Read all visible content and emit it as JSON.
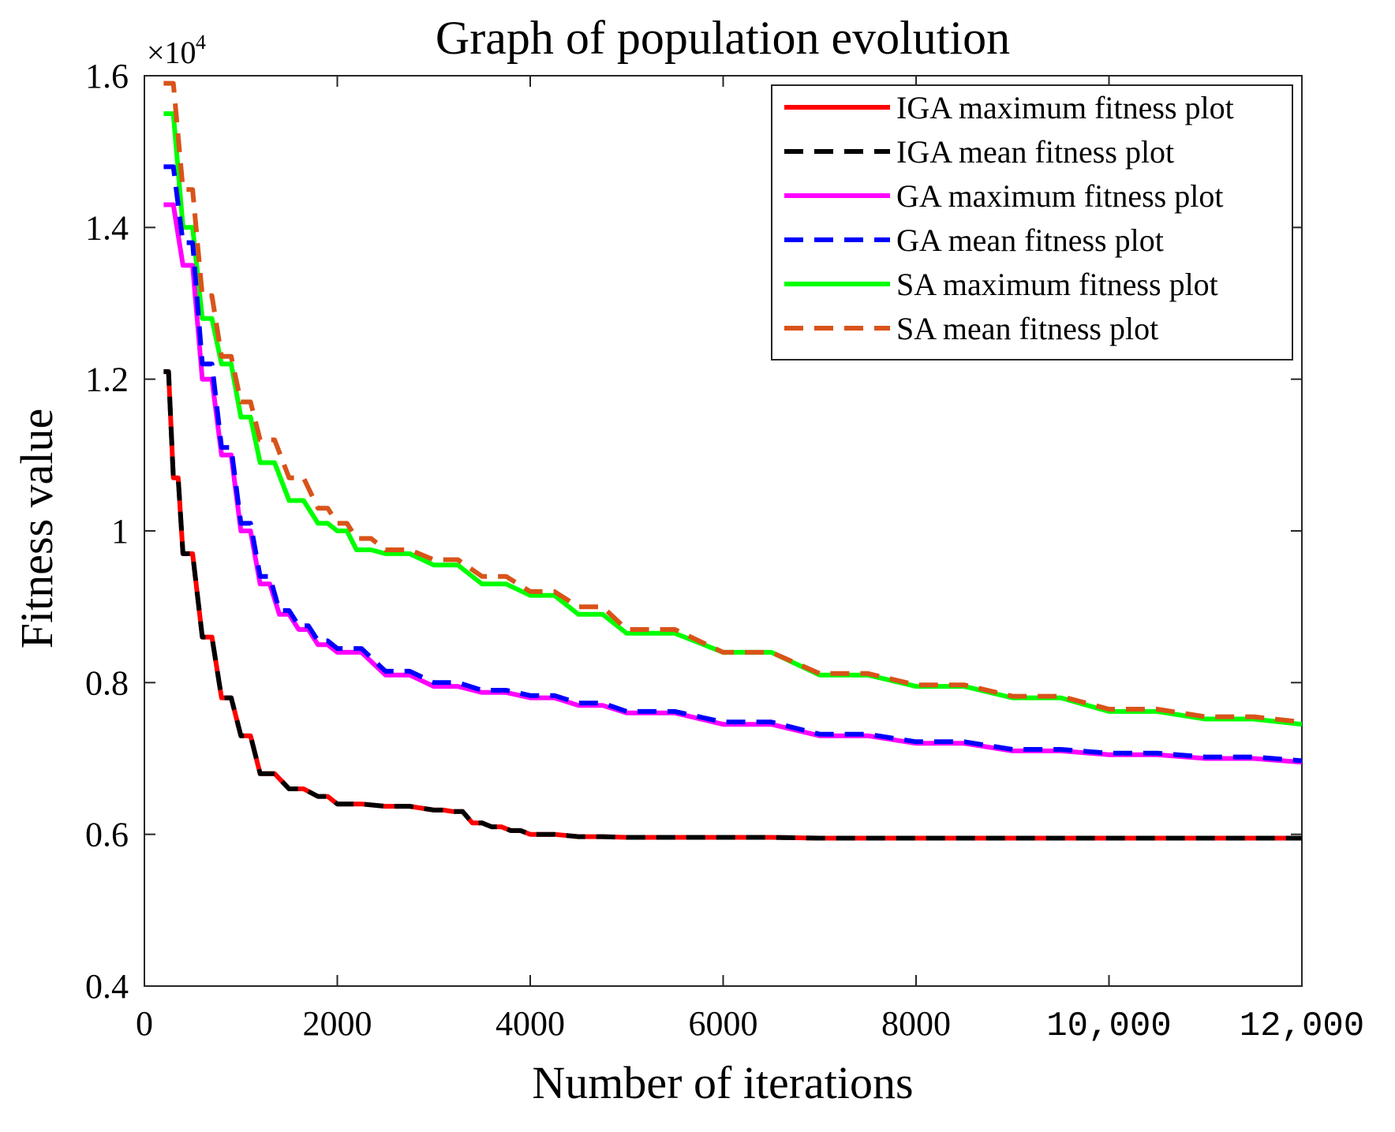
{
  "chart_data": {
    "type": "line",
    "title": "Graph of population evolution",
    "xlabel": "Number of iterations",
    "ylabel": "Fitness value",
    "exponent_base": "×10",
    "exponent_power": "4",
    "xlim": [
      0,
      12000
    ],
    "ylim": [
      0.4,
      1.6
    ],
    "xticks": [
      0,
      2000,
      4000,
      6000,
      8000,
      10000,
      12000
    ],
    "xtick_labels": [
      "0",
      "2000",
      "4000",
      "6000",
      "8000",
      "10,000",
      "12,000"
    ],
    "yticks": [
      0.4,
      0.6,
      0.8,
      1.0,
      1.2,
      1.4,
      1.6
    ],
    "ytick_labels": [
      "0.4",
      "0.6",
      "0.8",
      "1",
      "1.2",
      "1.4",
      "1.6"
    ],
    "legend_position": "top-right",
    "series": [
      {
        "name": "IGA maximum fitness plot",
        "color": "#ff0000",
        "style": "solid",
        "x": [
          200,
          300,
          400,
          600,
          800,
          1000,
          1200,
          1500,
          1800,
          2000,
          2500,
          3000,
          3200,
          3400,
          3600,
          3800,
          4000,
          4500,
          5000,
          6000,
          7000,
          8000,
          9000,
          10000,
          11000,
          12000
        ],
        "y": [
          1.21,
          1.07,
          0.97,
          0.86,
          0.78,
          0.73,
          0.68,
          0.66,
          0.65,
          0.64,
          0.637,
          0.632,
          0.63,
          0.615,
          0.61,
          0.605,
          0.6,
          0.597,
          0.596,
          0.596,
          0.595,
          0.595,
          0.595,
          0.595,
          0.595,
          0.595
        ]
      },
      {
        "name": "IGA mean fitness plot",
        "color": "#000000",
        "style": "dashed",
        "x": [
          200,
          300,
          400,
          600,
          800,
          1000,
          1200,
          1500,
          1800,
          2000,
          2500,
          3000,
          3200,
          3400,
          3600,
          3800,
          4000,
          4500,
          5000,
          6000,
          7000,
          8000,
          9000,
          10000,
          11000,
          12000
        ],
        "y": [
          1.21,
          1.07,
          0.97,
          0.86,
          0.78,
          0.73,
          0.68,
          0.66,
          0.65,
          0.64,
          0.637,
          0.632,
          0.63,
          0.615,
          0.61,
          0.605,
          0.6,
          0.597,
          0.596,
          0.596,
          0.595,
          0.595,
          0.595,
          0.595,
          0.595,
          0.595
        ]
      },
      {
        "name": "GA maximum fitness plot",
        "color": "#ff00ff",
        "style": "solid",
        "x": [
          200,
          400,
          600,
          800,
          1000,
          1200,
          1400,
          1600,
          1800,
          2000,
          2500,
          3000,
          3500,
          4000,
          4500,
          5000,
          6000,
          7000,
          8000,
          9000,
          10000,
          11000,
          12000
        ],
        "y": [
          1.43,
          1.35,
          1.2,
          1.1,
          1.0,
          0.93,
          0.89,
          0.87,
          0.85,
          0.84,
          0.81,
          0.795,
          0.787,
          0.78,
          0.77,
          0.76,
          0.745,
          0.73,
          0.72,
          0.71,
          0.705,
          0.7,
          0.695
        ]
      },
      {
        "name": "GA mean fitness plot",
        "color": "#0000ff",
        "style": "dashed",
        "x": [
          200,
          400,
          600,
          800,
          1000,
          1200,
          1400,
          1600,
          1800,
          2000,
          2500,
          3000,
          3500,
          4000,
          4500,
          5000,
          6000,
          7000,
          8000,
          9000,
          10000,
          11000,
          12000
        ],
        "y": [
          1.48,
          1.38,
          1.22,
          1.11,
          1.01,
          0.94,
          0.895,
          0.875,
          0.855,
          0.845,
          0.815,
          0.8,
          0.79,
          0.783,
          0.773,
          0.762,
          0.748,
          0.732,
          0.722,
          0.712,
          0.707,
          0.702,
          0.697
        ]
      },
      {
        "name": "SA maximum fitness plot",
        "color": "#00ff00",
        "style": "solid",
        "x": [
          200,
          400,
          600,
          800,
          1000,
          1200,
          1500,
          1800,
          2000,
          2200,
          2500,
          3000,
          3500,
          4000,
          4500,
          5000,
          6000,
          7000,
          8000,
          9000,
          10000,
          11000,
          12000
        ],
        "y": [
          1.55,
          1.4,
          1.28,
          1.22,
          1.15,
          1.09,
          1.04,
          1.01,
          1.0,
          0.975,
          0.97,
          0.955,
          0.93,
          0.915,
          0.89,
          0.865,
          0.84,
          0.81,
          0.795,
          0.78,
          0.762,
          0.752,
          0.745
        ]
      },
      {
        "name": "SA mean fitness plot",
        "color": "#d95319",
        "style": "dashed",
        "x": [
          200,
          400,
          600,
          800,
          1000,
          1200,
          1500,
          1800,
          2000,
          2200,
          2500,
          3000,
          3500,
          4000,
          4500,
          5000,
          6000,
          7000,
          8000,
          9000,
          10000,
          11000,
          12000
        ],
        "y": [
          1.59,
          1.45,
          1.31,
          1.23,
          1.17,
          1.12,
          1.07,
          1.03,
          1.01,
          0.99,
          0.975,
          0.962,
          0.94,
          0.92,
          0.9,
          0.87,
          0.84,
          0.812,
          0.797,
          0.782,
          0.765,
          0.755,
          0.748
        ]
      }
    ]
  }
}
